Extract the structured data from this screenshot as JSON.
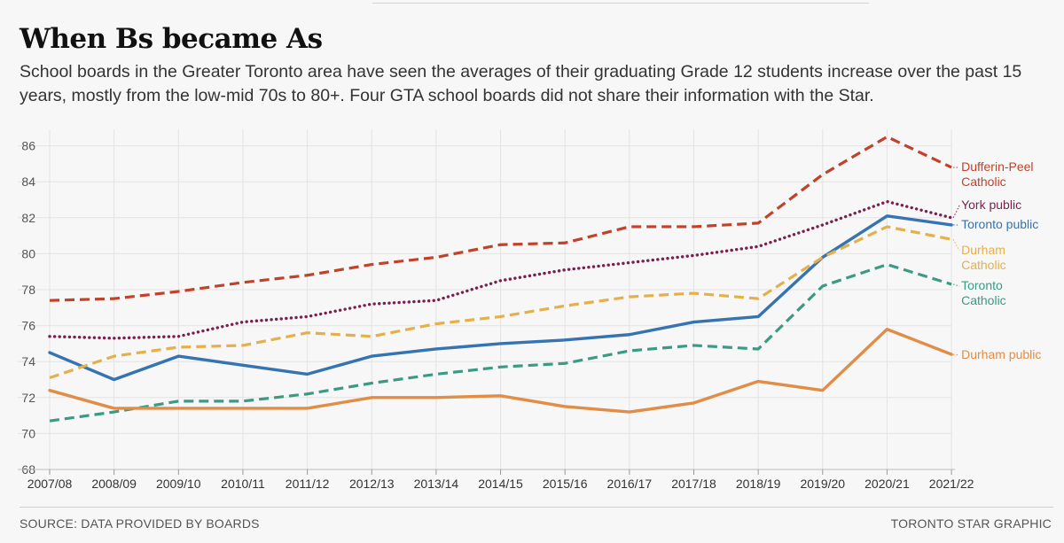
{
  "title": "When Bs became As",
  "subtitle": "School boards in the Greater Toronto area have seen the averages of their graduating Grade 12 students increase over the past 15 years, mostly from the low-mid 70s to 80+. Four GTA school boards did not share their information with the Star.",
  "source": "SOURCE: DATA PROVIDED BY BOARDS",
  "credit": "TORONTO STAR GRAPHIC",
  "chart_data": {
    "type": "line",
    "title": "When Bs became As",
    "xlabel": "",
    "ylabel": "",
    "ylim": [
      68,
      87
    ],
    "yticks": [
      68,
      70,
      72,
      74,
      76,
      78,
      80,
      82,
      84,
      86
    ],
    "grid": true,
    "legend": "direct labels at right end of lines",
    "categories": [
      "2007/08",
      "2008/09",
      "2009/10",
      "2010/11",
      "2011/12",
      "2012/13",
      "2013/14",
      "2014/15",
      "2015/16",
      "2016/17",
      "2017/18",
      "2018/19",
      "2019/20",
      "2020/21",
      "2021/22"
    ],
    "series": [
      {
        "name": "Dufferin-Peel Catholic",
        "label_lines": [
          "Dufferin-Peel",
          "Catholic"
        ],
        "color": "#c0422a",
        "style": "dashed",
        "values": [
          77.4,
          77.5,
          77.9,
          78.4,
          78.8,
          79.4,
          79.8,
          80.5,
          80.6,
          81.5,
          81.5,
          81.7,
          84.4,
          86.5,
          84.8
        ]
      },
      {
        "name": "York public",
        "label_lines": [
          "York public"
        ],
        "color": "#7a1f4e",
        "style": "dotted",
        "values": [
          75.4,
          75.3,
          75.4,
          76.2,
          76.5,
          77.2,
          77.4,
          78.5,
          79.1,
          79.5,
          79.9,
          80.4,
          81.6,
          82.9,
          82.0
        ]
      },
      {
        "name": "Toronto public",
        "label_lines": [
          "Toronto public"
        ],
        "color": "#3573b1",
        "style": "solid",
        "values": [
          74.5,
          73.0,
          74.3,
          73.8,
          73.3,
          74.3,
          74.7,
          75.0,
          75.2,
          75.5,
          76.2,
          76.5,
          79.8,
          82.1,
          81.6
        ]
      },
      {
        "name": "Durham Catholic",
        "label_lines": [
          "Durham",
          "Catholic"
        ],
        "color": "#e3b04b",
        "style": "dashed",
        "values": [
          73.1,
          74.3,
          74.8,
          74.9,
          75.6,
          75.4,
          76.1,
          76.5,
          77.1,
          77.6,
          77.8,
          77.5,
          79.8,
          81.5,
          80.8
        ]
      },
      {
        "name": "Toronto Catholic",
        "label_lines": [
          "Toronto",
          "Catholic"
        ],
        "color": "#3b9a84",
        "style": "dashed",
        "values": [
          70.7,
          71.2,
          71.8,
          71.8,
          72.2,
          72.8,
          73.3,
          73.7,
          73.9,
          74.6,
          74.9,
          74.7,
          78.2,
          79.4,
          78.3
        ]
      },
      {
        "name": "Durham public",
        "label_lines": [
          "Durham public"
        ],
        "color": "#e08d47",
        "style": "solid",
        "values": [
          72.4,
          71.4,
          71.4,
          71.4,
          71.4,
          72.0,
          72.0,
          72.1,
          71.5,
          71.2,
          71.7,
          72.9,
          72.4,
          75.8,
          74.4
        ]
      }
    ]
  }
}
